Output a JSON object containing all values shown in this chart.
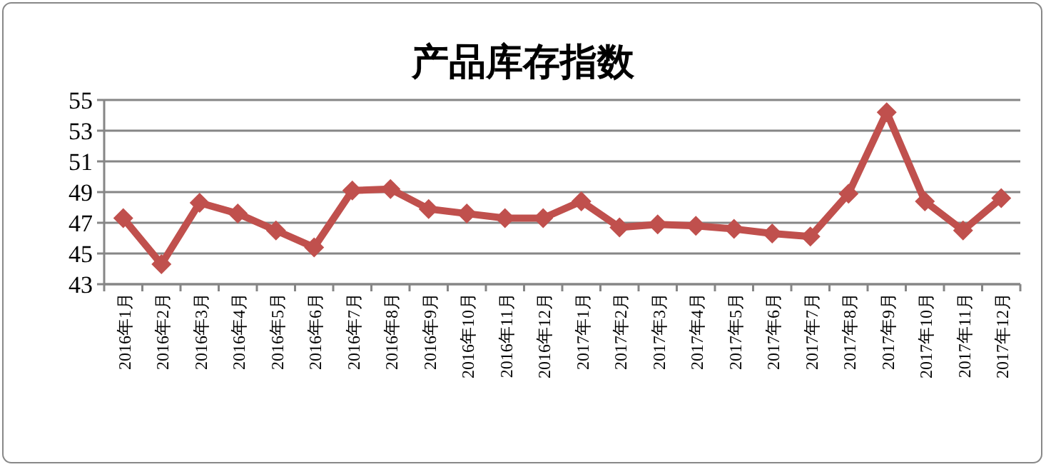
{
  "chart_data": {
    "type": "line",
    "title": "产品库存指数",
    "categories": [
      "2016年1月",
      "2016年2月",
      "2016年3月",
      "2016年4月",
      "2016年5月",
      "2016年6月",
      "2016年7月",
      "2016年8月",
      "2016年9月",
      "2016年10月",
      "2016年11月",
      "2016年12月",
      "2017年1月",
      "2017年2月",
      "2017年3月",
      "2017年4月",
      "2017年5月",
      "2017年6月",
      "2017年7月",
      "2017年8月",
      "2017年9月",
      "2017年10月",
      "2017年11月",
      "2017年12月"
    ],
    "series": [
      {
        "color": "#c0504d",
        "values": [
          47.3,
          44.3,
          48.3,
          47.6,
          46.5,
          45.4,
          49.1,
          49.2,
          47.9,
          47.6,
          47.3,
          47.3,
          48.4,
          46.7,
          46.9,
          46.8,
          46.6,
          46.3,
          46.1,
          48.9,
          54.2,
          48.4,
          46.5,
          48.6
        ]
      }
    ],
    "ylim": [
      43,
      55
    ],
    "yticks": [
      43,
      45,
      47,
      49,
      51,
      53,
      55
    ],
    "grid": "y",
    "marker": "diamond",
    "line_style": "solid"
  }
}
